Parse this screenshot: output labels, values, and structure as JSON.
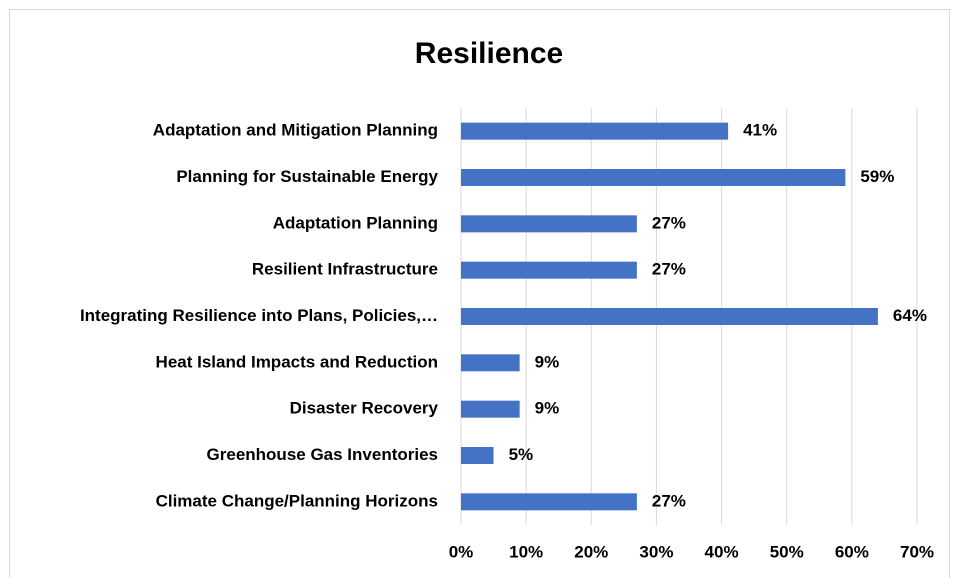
{
  "chart_data": {
    "type": "bar",
    "orientation": "horizontal",
    "title": "Resilience",
    "categories": [
      "Adaptation and Mitigation Planning",
      "Planning for Sustainable Energy",
      "Adaptation Planning",
      "Resilient Infrastructure",
      "Integrating Resilience into Plans, Policies,…",
      "Heat Island Impacts and Reduction",
      "Disaster Recovery",
      "Greenhouse Gas Inventories",
      "Climate Change/Planning Horizons"
    ],
    "values": [
      41,
      59,
      27,
      27,
      64,
      9,
      9,
      5,
      27
    ],
    "value_labels": [
      "41%",
      "59%",
      "27%",
      "27%",
      "64%",
      "9%",
      "9%",
      "5%",
      "27%"
    ],
    "color": "#4472c4",
    "xlim": [
      0,
      70
    ],
    "xticks": [
      {
        "value": 0,
        "label": "0%"
      },
      {
        "value": 10,
        "label": "10%"
      },
      {
        "value": 20,
        "label": "20%"
      },
      {
        "value": 30,
        "label": "30%"
      },
      {
        "value": 40,
        "label": "40%"
      },
      {
        "value": 50,
        "label": "50%"
      },
      {
        "value": 60,
        "label": "60%"
      },
      {
        "value": 70,
        "label": "70%"
      }
    ],
    "grid": true
  }
}
